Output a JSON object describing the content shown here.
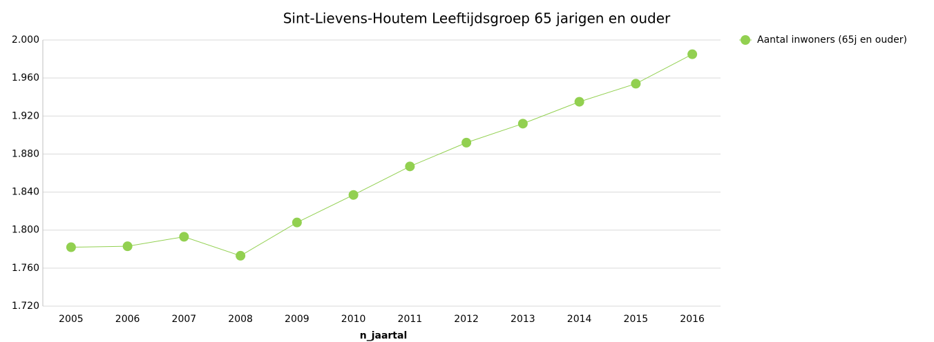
{
  "chart_data": {
    "type": "line",
    "title": "Sint-Lievens-Houtem  Leeftijdsgroep 65 jarigen en ouder",
    "x_label": "n_jaartal",
    "categories": [
      "2005",
      "2006",
      "2007",
      "2008",
      "2009",
      "2010",
      "2011",
      "2012",
      "2013",
      "2014",
      "2015",
      "2016"
    ],
    "series": [
      {
        "name": "Aantal inwoners (65j en ouder)",
        "color": "#92d050",
        "values": [
          1782,
          1783,
          1793,
          1773,
          1808,
          1837,
          1867,
          1892,
          1912,
          1935,
          1954,
          1985
        ]
      }
    ],
    "ylim": [
      1720,
      2000
    ],
    "yticks": [
      {
        "value": 1720,
        "label": "1.720"
      },
      {
        "value": 1760,
        "label": "1.760"
      },
      {
        "value": 1800,
        "label": "1.800"
      },
      {
        "value": 1840,
        "label": "1.840"
      },
      {
        "value": 1880,
        "label": "1.880"
      },
      {
        "value": 1920,
        "label": "1.920"
      },
      {
        "value": 1960,
        "label": "1.960"
      },
      {
        "value": 2000,
        "label": "2.000"
      }
    ],
    "grid": true,
    "legend": "right"
  }
}
